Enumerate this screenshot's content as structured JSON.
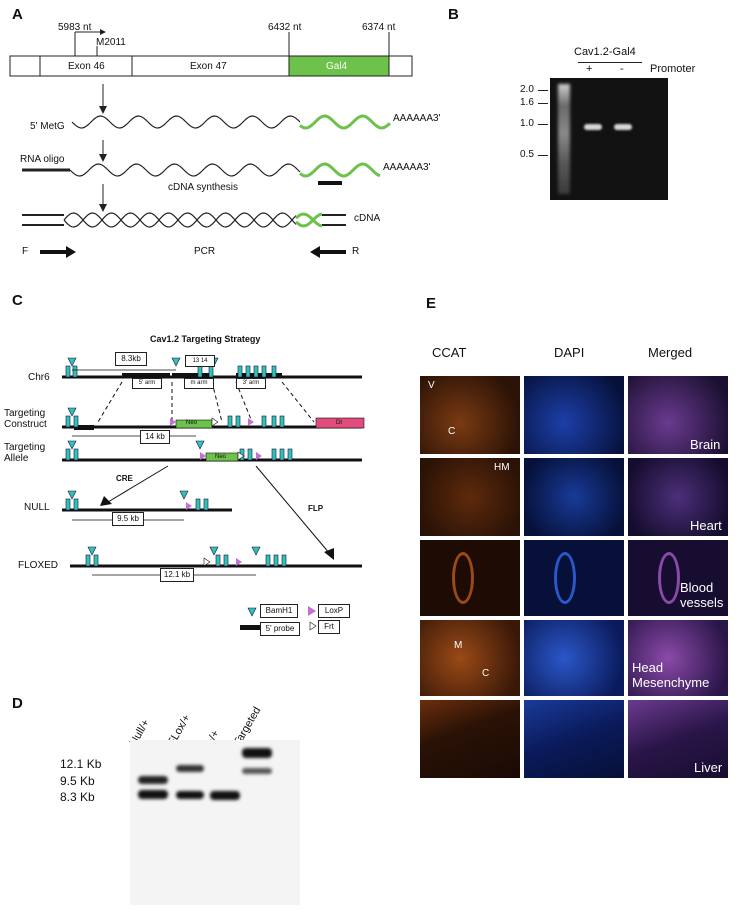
{
  "panels": {
    "A": {
      "letter": "A",
      "nt_start": "5983 nt",
      "nt_mid": "6432 nt",
      "nt_end": "6374 nt",
      "mutation": "M2011",
      "exon1": "Exon 46",
      "exon2": "Exon 47",
      "reporter": "Gal4",
      "row1": "5' MetG",
      "row1_tail": "AAAAAA3'",
      "row2": "RNA oligo",
      "row2_tail": "AAAAAA3'",
      "synthesis": "cDNA synthesis",
      "cdna": "cDNA",
      "primer_f": "F",
      "pcr": "PCR",
      "primer_r": "R"
    },
    "B": {
      "letter": "B",
      "title": "Cav1.2-Gal4",
      "plus": "+",
      "minus": "-",
      "promoter": "Promoter",
      "markers": [
        "2.0",
        "1.6",
        "1.0",
        "0.5"
      ]
    },
    "C": {
      "letter": "C",
      "title": "Cav1.2 Targeting Strategy",
      "chr": "Chr6",
      "construct": "Targeting\nConstruct",
      "allele": "Targeting\nAllele",
      "null": "NULL",
      "floxed": "FLOXED",
      "cre": "CRE",
      "flp": "FLP",
      "size_83": "8.3kb",
      "size_14": "14 kb",
      "size_95": "9.5 kb",
      "size_121": "12.1 kb",
      "exon_nums": "13    14",
      "arm5": "5' arm",
      "armm": "m arm",
      "arm3": "3' arm",
      "neo": "Neo",
      "neo2": "Neo",
      "dt": "Dt",
      "legend_bamh1": "BamH1",
      "legend_probe": "5' probe",
      "legend_loxp": "LoxP",
      "legend_frt": "Frt"
    },
    "D": {
      "letter": "D",
      "lanes": [
        "Null/+",
        "FLox/+",
        "+/+",
        "Targeted"
      ],
      "sizes": [
        "12.1 Kb",
        "9.5 Kb",
        "8.3 Kb"
      ]
    },
    "E": {
      "letter": "E",
      "columns": [
        "CCAT",
        "DAPI",
        "Merged"
      ],
      "rows": [
        "Brain",
        "Heart",
        "Blood\nvessels",
        "Head\nMesenchyme",
        "Liver"
      ],
      "marks": {
        "v": "V",
        "c": "C",
        "hm": "HM",
        "m": "M",
        "c2": "C"
      },
      "colors": {
        "ccat": "#b35a1f",
        "dapi": "#1c3fa8",
        "merged": "#6a3a8f",
        "gal4": "#6cc24a",
        "probe_cyan": "#33c2b0",
        "loxp": "#c46fd6",
        "dt": "#e04c7b"
      }
    }
  }
}
